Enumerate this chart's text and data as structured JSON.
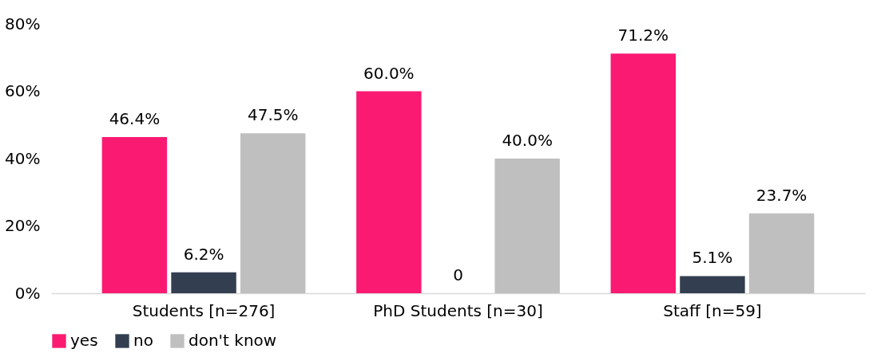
{
  "chart_data": {
    "type": "bar",
    "categories": [
      "Students [n=276]",
      "PhD Students [n=30]",
      "Staff [n=59]"
    ],
    "series": [
      {
        "name": "yes",
        "color": "#fa1a72",
        "values": [
          46.4,
          60.0,
          71.2
        ],
        "value_labels": [
          "46.4%",
          "60.0%",
          "71.2%"
        ]
      },
      {
        "name": "no",
        "color": "#333f50",
        "values": [
          6.2,
          0,
          5.1
        ],
        "value_labels": [
          "6.2%",
          "0",
          "5.1%"
        ]
      },
      {
        "name": "don't know",
        "color": "#bfbfbf",
        "values": [
          47.5,
          40.0,
          23.7
        ],
        "value_labels": [
          "47.5%",
          "40.0%",
          "23.7%"
        ]
      }
    ],
    "ylim": [
      0,
      80
    ],
    "yticks": [
      {
        "value": 0,
        "label": "0%"
      },
      {
        "value": 20,
        "label": "20%"
      },
      {
        "value": 40,
        "label": "40%"
      },
      {
        "value": 60,
        "label": "60%"
      },
      {
        "value": 80,
        "label": "80%"
      }
    ],
    "grid": false,
    "legend": "bottom"
  }
}
